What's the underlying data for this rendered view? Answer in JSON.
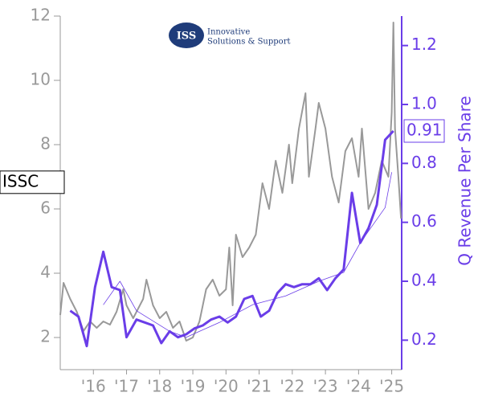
{
  "chart_data": {
    "type": "line",
    "ticker": "ISSC",
    "y2_label": "Q Revenue Per Share",
    "current_revenue": 0.91,
    "logo": {
      "letters": "ISS",
      "line1": "Innovative",
      "line2": "Solutions & Support"
    },
    "xlim": [
      2015,
      2025.3
    ],
    "xticks": [
      {
        "value": 2016,
        "label": "'16"
      },
      {
        "value": 2017,
        "label": "'17"
      },
      {
        "value": 2018,
        "label": "'18"
      },
      {
        "value": 2019,
        "label": "'19"
      },
      {
        "value": 2020,
        "label": "'20"
      },
      {
        "value": 2021,
        "label": "'21"
      },
      {
        "value": 2022,
        "label": "'22"
      },
      {
        "value": 2023,
        "label": "'23"
      },
      {
        "value": 2024,
        "label": "'24"
      },
      {
        "value": 2025,
        "label": "'25"
      }
    ],
    "ylim": [
      1,
      12
    ],
    "yticks": [
      2,
      4,
      6,
      8,
      10,
      12
    ],
    "y2lim": [
      0.1,
      1.3
    ],
    "y2ticks": [
      0.2,
      0.4,
      0.6,
      0.8,
      {
        "value": 1,
        "label": "1.0"
      },
      1.2
    ],
    "series": [
      {
        "color": "#999999",
        "axis": "y",
        "x": [
          2015.0,
          2015.1,
          2015.3,
          2015.5,
          2015.7,
          2015.9,
          2016.1,
          2016.3,
          2016.5,
          2016.7,
          2016.9,
          2017.0,
          2017.2,
          2017.5,
          2017.6,
          2017.8,
          2018.0,
          2018.2,
          2018.4,
          2018.6,
          2018.8,
          2019.0,
          2019.2,
          2019.4,
          2019.6,
          2019.8,
          2020.0,
          2020.1,
          2020.2,
          2020.3,
          2020.5,
          2020.7,
          2020.9,
          2021.1,
          2021.3,
          2021.5,
          2021.7,
          2021.9,
          2022.0,
          2022.2,
          2022.4,
          2022.5,
          2022.7,
          2022.8,
          2023.0,
          2023.2,
          2023.4,
          2023.6,
          2023.8,
          2024.0,
          2024.1,
          2024.3,
          2024.5,
          2024.7,
          2024.9,
          2025.0,
          2025.05,
          2025.1,
          2025.2,
          2025.28
        ],
        "values": [
          2.7,
          3.7,
          3.2,
          2.8,
          2.2,
          2.5,
          2.3,
          2.5,
          2.4,
          2.8,
          3.5,
          3.0,
          2.6,
          3.2,
          3.8,
          3.0,
          2.6,
          2.8,
          2.3,
          2.5,
          1.9,
          2.0,
          2.5,
          3.5,
          3.8,
          3.3,
          3.5,
          4.8,
          3.0,
          5.2,
          4.5,
          4.8,
          5.2,
          6.8,
          6.0,
          7.5,
          6.5,
          8.0,
          6.8,
          8.5,
          9.6,
          7.0,
          8.5,
          9.3,
          8.5,
          7.0,
          6.2,
          7.8,
          8.2,
          7.0,
          8.5,
          6.0,
          6.5,
          7.5,
          7.0,
          9.0,
          11.8,
          8.5,
          7.0,
          5.7
        ]
      },
      {
        "color": "#6a3de8",
        "axis": "y2",
        "x": [
          2015.3,
          2015.55,
          2015.8,
          2016.05,
          2016.3,
          2016.55,
          2016.8,
          2017.0,
          2017.3,
          2017.55,
          2017.8,
          2018.05,
          2018.3,
          2018.55,
          2018.8,
          2019.05,
          2019.3,
          2019.55,
          2019.8,
          2020.05,
          2020.3,
          2020.55,
          2020.8,
          2021.05,
          2021.3,
          2021.55,
          2021.8,
          2022.05,
          2022.3,
          2022.55,
          2022.8,
          2023.05,
          2023.3,
          2023.55,
          2023.8,
          2024.05,
          2024.3,
          2024.55,
          2024.8,
          2025.05
        ],
        "values": [
          0.3,
          0.28,
          0.18,
          0.38,
          0.5,
          0.38,
          0.37,
          0.21,
          0.27,
          0.26,
          0.25,
          0.19,
          0.23,
          0.21,
          0.22,
          0.24,
          0.25,
          0.27,
          0.28,
          0.26,
          0.28,
          0.34,
          0.35,
          0.28,
          0.3,
          0.36,
          0.39,
          0.38,
          0.39,
          0.39,
          0.41,
          0.37,
          0.41,
          0.44,
          0.7,
          0.53,
          0.58,
          0.66,
          0.88,
          0.91
        ]
      },
      {
        "color": "#6a3de8",
        "axis": "y2",
        "x": [
          2016.3,
          2016.8,
          2017.3,
          2018.3,
          2018.8,
          2019.8,
          2020.8,
          2021.8,
          2022.8,
          2023.55,
          2024.05,
          2024.8,
          2025.0
        ],
        "values": [
          0.32,
          0.4,
          0.3,
          0.23,
          0.21,
          0.26,
          0.32,
          0.35,
          0.4,
          0.43,
          0.53,
          0.65,
          0.77
        ]
      }
    ]
  }
}
